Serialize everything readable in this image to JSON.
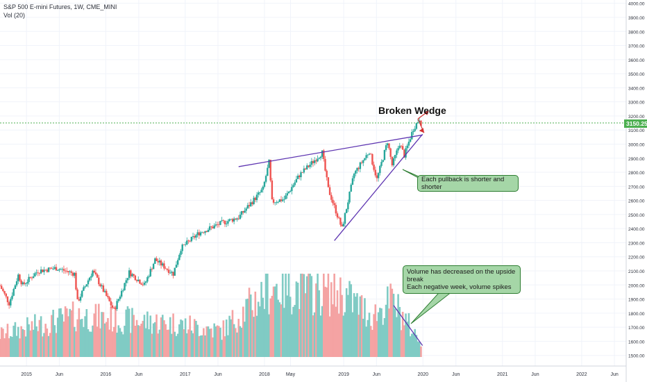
{
  "legend": {
    "line1": "S&P 500 E-mini Futures, 1W, CME_MINI",
    "line2": "Vol (20)"
  },
  "annotations": {
    "title": "Broken Wedge",
    "callout1": "Each pullback is shorter and shorter",
    "callout2_line1": "Volume has decreased on the upside break",
    "callout2_line2": "Each negative week, volume spikes"
  },
  "colors": {
    "up": "#26a69a",
    "down": "#ef5350",
    "vol_up": "#80cbc4",
    "vol_down": "#f4a3a3",
    "wedge_line": "#5e35b1",
    "arrow": "#d32f2f",
    "price_line": "#4caf50",
    "grid": "#f0f3fa",
    "text": "#2a2e39"
  },
  "chart_data": {
    "type": "candlestick",
    "title": "",
    "symbol": "S&P 500 E-mini Futures",
    "timeframe": "1W",
    "exchange": "CME_MINI",
    "indicator": "Vol (20)",
    "last_price": "3150.25",
    "ylim": [
      1440,
      4010
    ],
    "y_ticks": [
      "4000.00",
      "3900.00",
      "3800.00",
      "3700.00",
      "3600.00",
      "3500.00",
      "3400.00",
      "3300.00",
      "3200.00",
      "3100.00",
      "3000.00",
      "2900.00",
      "2800.00",
      "2700.00",
      "2600.00",
      "2500.00",
      "2400.00",
      "2300.00",
      "2200.00",
      "2100.00",
      "2000.00",
      "1900.00",
      "1800.00",
      "1700.00",
      "1600.00",
      "1500.00"
    ],
    "x_ticks": [
      "2015",
      "Jun",
      "2016",
      "Jun",
      "2017",
      "Jun",
      "2018",
      "May",
      "2019",
      "Jun",
      "2020",
      "Jun",
      "2021",
      "Jun",
      "2022",
      "Jun"
    ],
    "x_tick_dates": [
      "2015-01-01",
      "2015-06-01",
      "2016-01-01",
      "2016-06-01",
      "2017-01-01",
      "2017-06-01",
      "2018-01-01",
      "2018-05-01",
      "2019-01-01",
      "2019-06-01",
      "2020-01-01",
      "2020-06-01",
      "2021-01-01",
      "2021-06-01",
      "2022-01-01",
      "2022-06-01"
    ],
    "x_range": [
      "2014-09-01",
      "2022-07-25"
    ],
    "price_path": [
      {
        "date": "2014-09-01",
        "close": 1995
      },
      {
        "date": "2014-10-13",
        "close": 1870
      },
      {
        "date": "2014-11-24",
        "close": 2070
      },
      {
        "date": "2014-12-15",
        "close": 2000
      },
      {
        "date": "2015-02-23",
        "close": 2100
      },
      {
        "date": "2015-05-18",
        "close": 2120
      },
      {
        "date": "2015-08-10",
        "close": 2080
      },
      {
        "date": "2015-08-24",
        "close": 1880
      },
      {
        "date": "2015-11-02",
        "close": 2100
      },
      {
        "date": "2016-02-08",
        "close": 1820
      },
      {
        "date": "2016-04-18",
        "close": 2090
      },
      {
        "date": "2016-06-27",
        "close": 2000
      },
      {
        "date": "2016-08-15",
        "close": 2180
      },
      {
        "date": "2016-11-07",
        "close": 2080
      },
      {
        "date": "2016-12-12",
        "close": 2260
      },
      {
        "date": "2017-03-06",
        "close": 2370
      },
      {
        "date": "2017-06-19",
        "close": 2440
      },
      {
        "date": "2017-09-04",
        "close": 2480
      },
      {
        "date": "2017-12-25",
        "close": 2680
      },
      {
        "date": "2018-01-22",
        "close": 2870
      },
      {
        "date": "2018-02-05",
        "close": 2590
      },
      {
        "date": "2018-04-02",
        "close": 2610
      },
      {
        "date": "2018-06-11",
        "close": 2780
      },
      {
        "date": "2018-09-24",
        "close": 2940
      },
      {
        "date": "2018-10-22",
        "close": 2680
      },
      {
        "date": "2018-12-24",
        "close": 2400
      },
      {
        "date": "2019-02-18",
        "close": 2790
      },
      {
        "date": "2019-04-29",
        "close": 2950
      },
      {
        "date": "2019-06-03",
        "close": 2750
      },
      {
        "date": "2019-07-22",
        "close": 3020
      },
      {
        "date": "2019-08-12",
        "close": 2850
      },
      {
        "date": "2019-09-16",
        "close": 3005
      },
      {
        "date": "2019-10-07",
        "close": 2920
      },
      {
        "date": "2019-11-18",
        "close": 3110
      },
      {
        "date": "2019-12-16",
        "close": 3180
      },
      {
        "date": "2019-12-23",
        "close": 3150
      }
    ],
    "volume_path": [
      {
        "date": "2014-09-01",
        "level": 0.3
      },
      {
        "date": "2015-08-24",
        "level": 0.55
      },
      {
        "date": "2016-02-08",
        "level": 0.5
      },
      {
        "date": "2016-11-07",
        "level": 0.45
      },
      {
        "date": "2017-06-19",
        "level": 0.35
      },
      {
        "date": "2018-02-05",
        "level": 0.95
      },
      {
        "date": "2018-12-24",
        "level": 0.85
      },
      {
        "date": "2019-05-13",
        "level": 0.55
      },
      {
        "date": "2019-08-12",
        "level": 0.75
      },
      {
        "date": "2019-12-16",
        "level": 0.22
      }
    ],
    "trendlines": [
      {
        "name": "wedge-upper",
        "from": {
          "date": "2017-09-04",
          "price": 2840
        },
        "to": {
          "date": "2019-12-30",
          "price": 3065
        }
      },
      {
        "name": "wedge-lower",
        "from": {
          "date": "2018-11-19",
          "price": 2315
        },
        "to": {
          "date": "2019-12-30",
          "price": 3070
        }
      },
      {
        "name": "volume-decline",
        "from": {
          "date": "2019-08-19",
          "price": 1855
        },
        "to": {
          "date": "2019-12-30",
          "price": 1570
        }
      }
    ],
    "grid": true
  }
}
